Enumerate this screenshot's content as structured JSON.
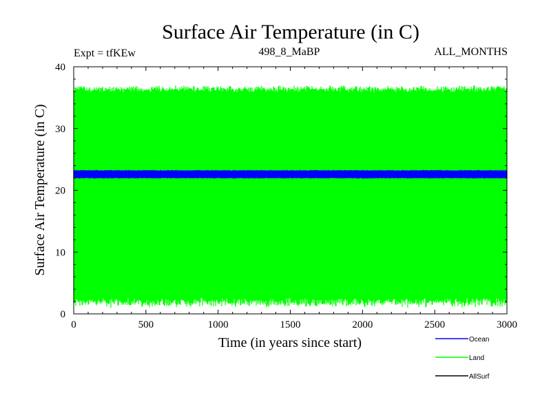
{
  "chart_data": {
    "type": "line",
    "title": "Surface Air Temperature (in C)",
    "experiment_label": "Expt = tfKEw",
    "run_label": "498_8_MaBP",
    "months_label": "ALL_MONTHS",
    "xlabel": "Time (in years since start)",
    "ylabel": "Surface Air Temperature (in C)",
    "xlim": [
      0,
      3000
    ],
    "ylim": [
      0,
      40
    ],
    "x_ticks": [
      0,
      500,
      1000,
      1500,
      2000,
      2500,
      3000
    ],
    "y_ticks": [
      0,
      10,
      20,
      30,
      40
    ],
    "grid": false,
    "legend_position": "bottom-right",
    "series": [
      {
        "name": "Ocean",
        "color": "#0000ff",
        "description_values": {
          "x": [
            0,
            500,
            1000,
            1500,
            2000,
            2500,
            3000
          ],
          "y_min": [
            22.0,
            22.0,
            22.0,
            22.0,
            22.0,
            22.0,
            22.0
          ],
          "y_max": [
            23.2,
            23.2,
            23.2,
            23.2,
            23.2,
            23.2,
            23.2
          ]
        }
      },
      {
        "name": "Land",
        "color": "#00ff00",
        "description_values": {
          "x": [
            0,
            500,
            1000,
            1500,
            2000,
            2500,
            3000
          ],
          "y_min": [
            2.0,
            2.0,
            2.0,
            2.0,
            2.0,
            2.0,
            2.0
          ],
          "y_max": [
            36.5,
            36.5,
            36.5,
            36.5,
            36.5,
            36.5,
            36.5
          ]
        }
      },
      {
        "name": "AllSurf",
        "color": "#000000",
        "description_values": {
          "x": [],
          "y_min": [],
          "y_max": []
        }
      }
    ]
  }
}
